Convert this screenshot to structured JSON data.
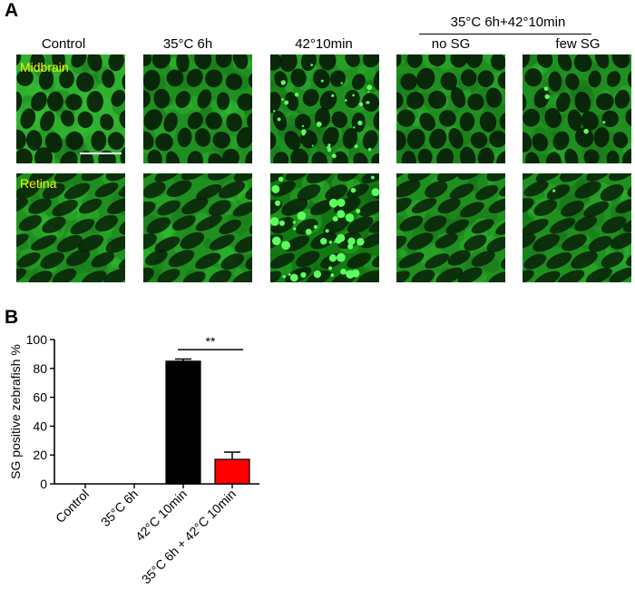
{
  "panel_a": {
    "letter": "A",
    "group_label": "35°C 6h+42°10min",
    "columns": [
      {
        "label": "Control",
        "variant": "mid_control"
      },
      {
        "label": "35°C 6h",
        "variant": "mid_35"
      },
      {
        "label": "42°10min",
        "variant": "mid_42"
      },
      {
        "label": "no SG",
        "variant": "mid_nosg"
      },
      {
        "label": "few SG",
        "variant": "mid_fewsg"
      }
    ],
    "rows": [
      {
        "label": "Midbrain"
      },
      {
        "label": "Retina"
      }
    ]
  },
  "panel_b": {
    "letter": "B"
  },
  "chart_data": {
    "type": "bar",
    "ylabel": "SG positive zebrafish %",
    "xlabel": "",
    "ylim": [
      0,
      100
    ],
    "yticks": [
      0,
      20,
      40,
      60,
      80,
      100
    ],
    "categories": [
      "Control",
      "35°C 6h",
      "42°C 10min",
      "35°C 6h + 42°C 10min"
    ],
    "values": [
      0,
      0,
      85,
      17
    ],
    "errors": [
      0,
      0,
      1.5,
      5
    ],
    "bar_colors": [
      "#000000",
      "#000000",
      "#000000",
      "#ff0000"
    ],
    "significance": {
      "between": [
        2,
        3
      ],
      "label": "**"
    }
  }
}
